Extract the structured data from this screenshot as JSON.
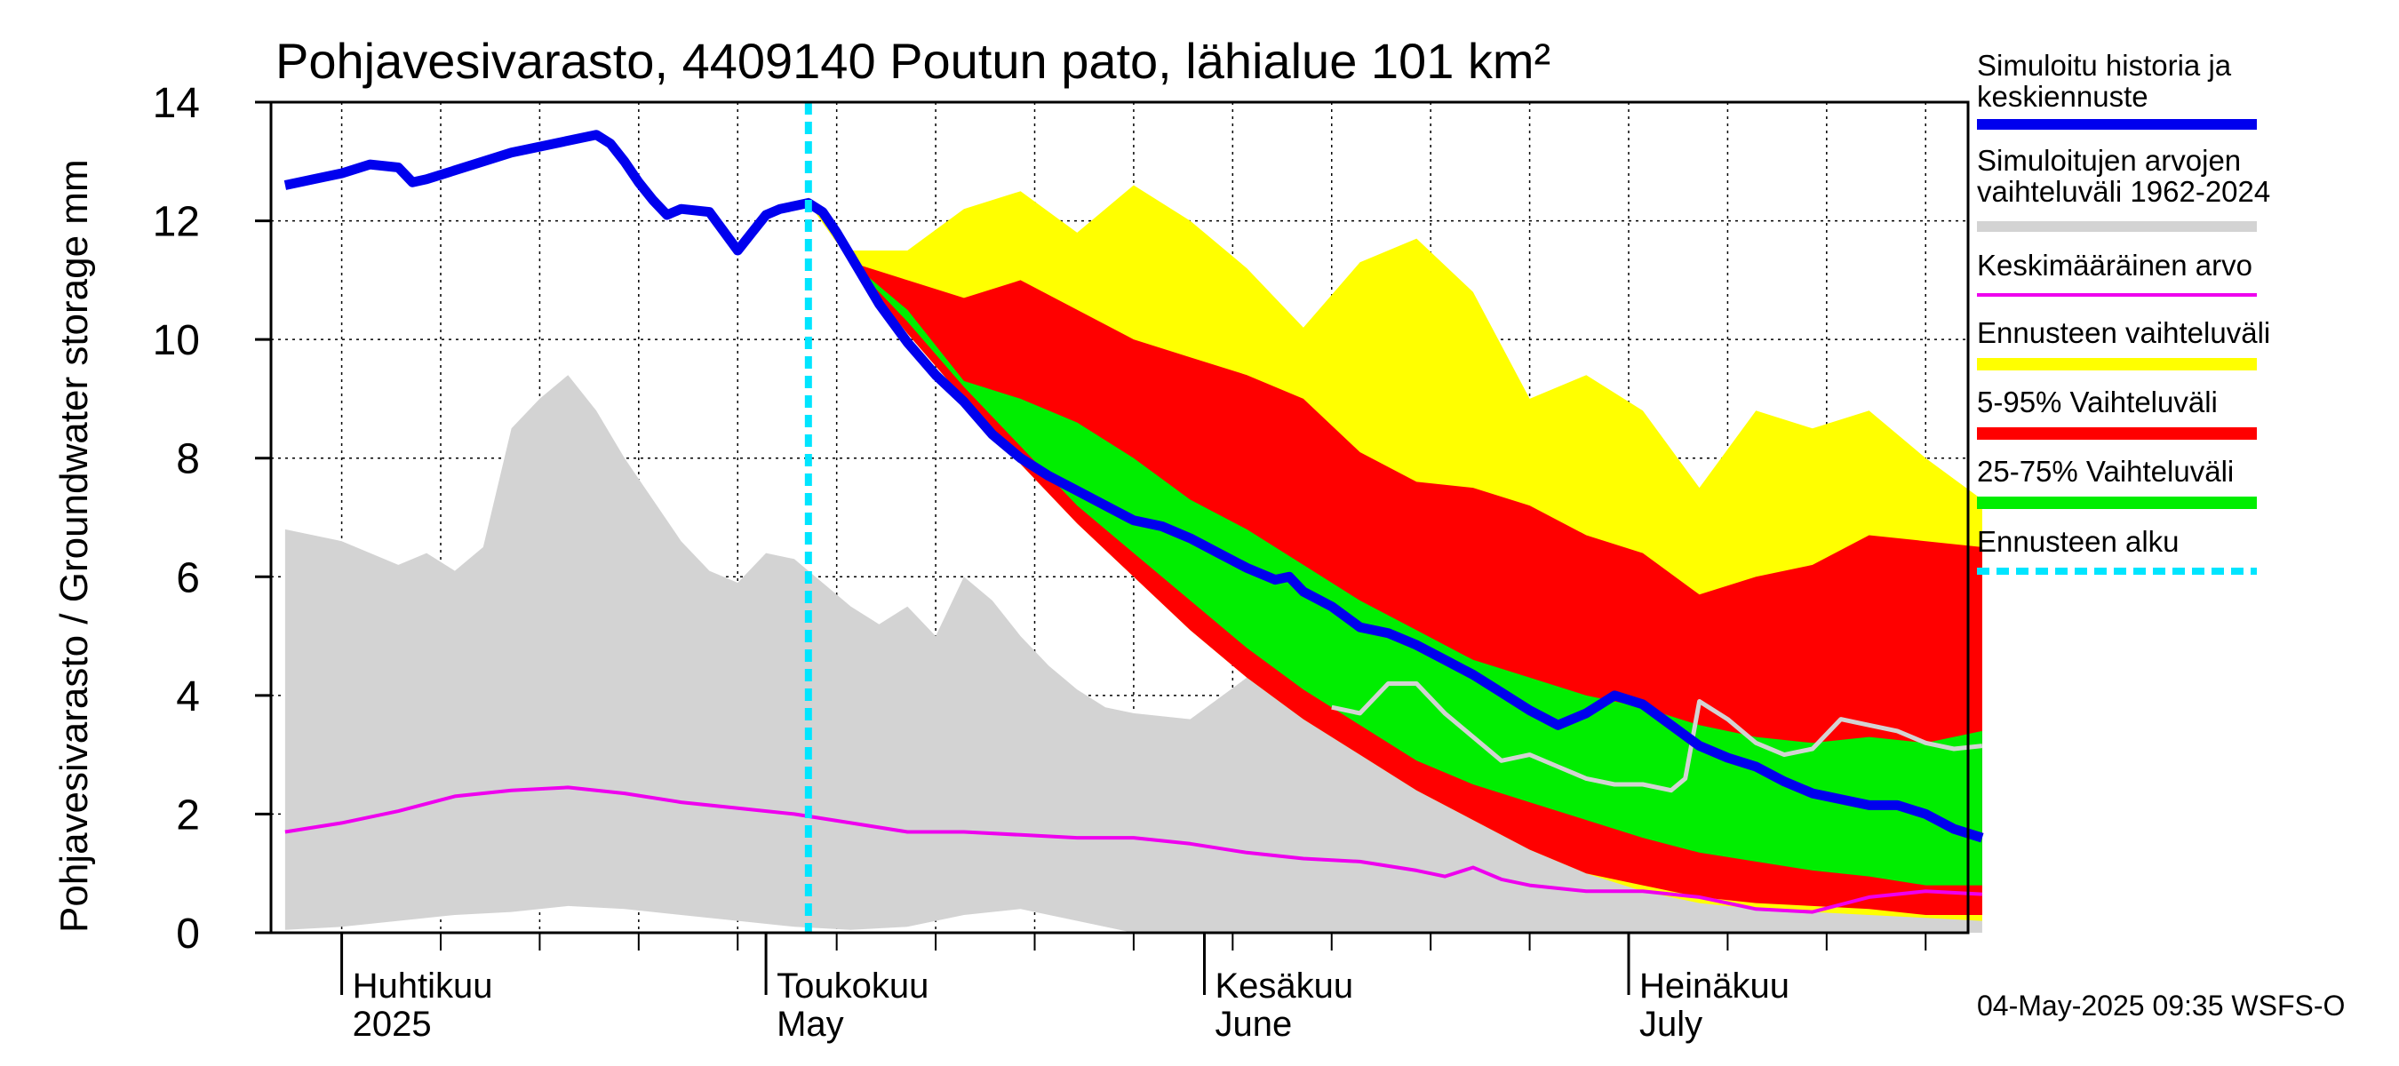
{
  "chart_data": {
    "type": "area",
    "title": "Pohjavesivarasto, 4409140 Poutun pato, lähialue 101 km²",
    "ylabel": "Pohjavesivarasto / Groundwater storage   mm",
    "ylim": [
      0,
      14
    ],
    "yticks": [
      "0",
      "2",
      "4",
      "6",
      "8",
      "10",
      "12",
      "14"
    ],
    "ytick_values": [
      0,
      2,
      4,
      6,
      8,
      10,
      12,
      14
    ],
    "xlim": [
      "2025-03-27",
      "2025-07-25"
    ],
    "month_labels": [
      {
        "fi": "Huhtikuu",
        "en": "2025",
        "date": "2025-04-01"
      },
      {
        "fi": "Toukokuu",
        "en": "May",
        "date": "2025-05-01"
      },
      {
        "fi": "Kesäkuu",
        "en": "June",
        "date": "2025-06-01"
      },
      {
        "fi": "Heinäkuu",
        "en": "July",
        "date": "2025-07-01"
      }
    ],
    "forecast_start": "2025-05-04",
    "legend": [
      {
        "label": "Simuloitu historia ja keskiennuste",
        "color": "#0000ee",
        "style": "thick"
      },
      {
        "label": "Simuloitujen arvojen vaihteluväli 1962-2024",
        "color": "#d3d3d3",
        "style": "line"
      },
      {
        "label": "Keskimääräinen arvo",
        "color": "#ee00ee",
        "style": "line"
      },
      {
        "label": "Ennusteen vaihteluväli",
        "color": "#ffff00",
        "style": "thick"
      },
      {
        "label": "5-95% Vaihteluväli",
        "color": "#ff0000",
        "style": "thick"
      },
      {
        "label": "25-75% Vaihteluväli",
        "color": "#00ee00",
        "style": "thick"
      },
      {
        "label": "Ennusteen alku",
        "color": "#00e5ff",
        "style": "dotted"
      }
    ],
    "series": [
      {
        "name": "Simulated history and mean forecast",
        "color": "#0000ee",
        "x": [
          -4,
          -2,
          0,
          2,
          4,
          5,
          6,
          8,
          10,
          12,
          14,
          16,
          18,
          19,
          20,
          21,
          22,
          23,
          24,
          26,
          28,
          29,
          30,
          31,
          32,
          33,
          34,
          35,
          36,
          38,
          40,
          42,
          44,
          46,
          48,
          50,
          52,
          54,
          56,
          58,
          60,
          62,
          64,
          66,
          67,
          68,
          70,
          72,
          74,
          76,
          78,
          80,
          82,
          84,
          86,
          88,
          90,
          92,
          94,
          96,
          98,
          100,
          102,
          104,
          106,
          108,
          110,
          112,
          114,
          116
        ],
        "y": [
          12.6,
          12.7,
          12.8,
          12.95,
          12.9,
          12.65,
          12.7,
          12.85,
          13.0,
          13.15,
          13.25,
          13.35,
          13.45,
          13.3,
          13.0,
          12.65,
          12.35,
          12.1,
          12.2,
          12.15,
          11.5,
          11.8,
          12.1,
          12.2,
          12.25,
          12.3,
          12.15,
          11.8,
          11.4,
          10.6,
          9.95,
          9.4,
          8.95,
          8.4,
          8.0,
          7.7,
          7.45,
          7.2,
          6.95,
          6.85,
          6.65,
          6.4,
          6.15,
          5.95,
          6.0,
          5.75,
          5.5,
          5.15,
          5.05,
          4.85,
          4.6,
          4.35,
          4.05,
          3.75,
          3.5,
          3.7,
          4.0,
          3.85,
          3.5,
          3.15,
          2.95,
          2.8,
          2.55,
          2.35,
          2.25,
          2.15,
          2.15,
          2.0,
          1.75,
          1.6
        ]
      },
      {
        "name": "Mean value",
        "color": "#ee00ee",
        "x": [
          -4,
          0,
          4,
          8,
          12,
          16,
          20,
          24,
          28,
          32,
          36,
          40,
          44,
          48,
          52,
          56,
          60,
          64,
          68,
          72,
          76,
          78,
          80,
          82,
          84,
          88,
          92,
          96,
          100,
          104,
          108,
          112,
          116
        ],
        "y": [
          1.7,
          1.85,
          2.05,
          2.3,
          2.4,
          2.45,
          2.35,
          2.2,
          2.1,
          2.0,
          1.85,
          1.7,
          1.7,
          1.65,
          1.6,
          1.6,
          1.5,
          1.35,
          1.25,
          1.2,
          1.05,
          0.95,
          1.1,
          0.9,
          0.8,
          0.7,
          0.7,
          0.6,
          0.4,
          0.35,
          0.6,
          0.7,
          0.65
        ]
      },
      {
        "name": "Historical range max",
        "color": "#d3d3d3",
        "x": [
          -4,
          0,
          4,
          6,
          8,
          10,
          12,
          14,
          16,
          18,
          20,
          22,
          24,
          26,
          28,
          30,
          32,
          34,
          36,
          38,
          40,
          42,
          44,
          46,
          48,
          50,
          52,
          54,
          56,
          60,
          64,
          68,
          72,
          76,
          80,
          84,
          88,
          92,
          96,
          100,
          104,
          108,
          112,
          116
        ],
        "y": [
          6.8,
          6.6,
          6.2,
          6.4,
          6.1,
          6.5,
          8.5,
          9.0,
          9.4,
          8.8,
          8.0,
          7.3,
          6.6,
          6.1,
          5.9,
          6.4,
          6.3,
          5.9,
          5.5,
          5.2,
          5.5,
          5.0,
          6.0,
          5.6,
          5.0,
          4.5,
          4.1,
          3.8,
          3.7,
          3.6,
          4.3,
          3.9,
          3.6,
          3.2,
          3.0,
          2.8,
          2.6,
          2.6,
          2.5,
          2.5,
          2.6,
          2.7,
          2.6,
          2.5
        ]
      },
      {
        "name": "Historical range min",
        "color": "#d3d3d3",
        "x": [
          -4,
          0,
          4,
          8,
          12,
          16,
          20,
          24,
          28,
          32,
          36,
          40,
          44,
          48,
          52,
          56,
          60,
          116
        ],
        "y": [
          0.05,
          0.1,
          0.2,
          0.3,
          0.35,
          0.45,
          0.4,
          0.3,
          0.2,
          0.1,
          0.05,
          0.1,
          0.3,
          0.4,
          0.2,
          0.0,
          0.0,
          0.0
        ]
      },
      {
        "name": "Forecast range max",
        "color": "#ffff00",
        "x": [
          33,
          36,
          40,
          44,
          48,
          52,
          56,
          60,
          64,
          68,
          72,
          76,
          80,
          84,
          88,
          92,
          96,
          100,
          104,
          108,
          112,
          116
        ],
        "y": [
          12.4,
          11.5,
          11.5,
          12.2,
          12.5,
          11.8,
          12.6,
          12.0,
          11.2,
          10.2,
          11.3,
          11.7,
          10.8,
          9.0,
          9.4,
          8.8,
          7.5,
          8.8,
          8.5,
          8.8,
          8.0,
          7.3
        ]
      },
      {
        "name": "Forecast range min",
        "color": "#ffff00",
        "x": [
          33,
          36,
          40,
          44,
          48,
          52,
          56,
          60,
          64,
          68,
          72,
          76,
          80,
          84,
          88,
          92,
          96,
          100,
          104,
          108,
          112,
          116
        ],
        "y": [
          12.3,
          11.3,
          10.1,
          9.0,
          7.9,
          6.9,
          6.0,
          5.1,
          4.3,
          3.6,
          3.0,
          2.4,
          1.9,
          1.4,
          1.0,
          0.7,
          0.5,
          0.4,
          0.35,
          0.3,
          0.25,
          0.2
        ]
      },
      {
        "name": "5-95% max",
        "color": "#ff0000",
        "x": [
          33,
          36,
          40,
          44,
          48,
          52,
          56,
          60,
          64,
          68,
          72,
          76,
          80,
          84,
          88,
          92,
          96,
          100,
          104,
          108,
          112,
          116
        ],
        "y": [
          12.3,
          11.3,
          11.0,
          10.7,
          11.0,
          10.5,
          10.0,
          9.7,
          9.4,
          9.0,
          8.1,
          7.6,
          7.5,
          7.2,
          6.7,
          6.4,
          5.7,
          6.0,
          6.2,
          6.7,
          6.6,
          6.5
        ]
      },
      {
        "name": "5-95% min",
        "color": "#ff0000",
        "x": [
          33,
          36,
          40,
          44,
          48,
          52,
          56,
          60,
          64,
          68,
          72,
          76,
          80,
          84,
          88,
          92,
          96,
          100,
          104,
          108,
          112,
          116
        ],
        "y": [
          12.3,
          11.3,
          10.1,
          9.0,
          7.9,
          6.9,
          6.0,
          5.1,
          4.3,
          3.6,
          3.0,
          2.4,
          1.9,
          1.4,
          1.0,
          0.8,
          0.6,
          0.5,
          0.45,
          0.4,
          0.3,
          0.3
        ]
      },
      {
        "name": "25-75% max",
        "color": "#00ee00",
        "x": [
          33,
          36,
          40,
          44,
          48,
          52,
          56,
          60,
          64,
          68,
          72,
          76,
          80,
          84,
          88,
          92,
          96,
          100,
          104,
          108,
          112,
          116
        ],
        "y": [
          12.3,
          11.3,
          10.5,
          9.3,
          9.0,
          8.6,
          8.0,
          7.3,
          6.8,
          6.2,
          5.6,
          5.1,
          4.6,
          4.3,
          4.0,
          3.8,
          3.5,
          3.3,
          3.2,
          3.3,
          3.2,
          3.4
        ]
      },
      {
        "name": "25-75% min",
        "color": "#00ee00",
        "x": [
          33,
          36,
          40,
          44,
          48,
          52,
          56,
          60,
          64,
          68,
          72,
          76,
          80,
          84,
          88,
          92,
          96,
          100,
          104,
          108,
          112,
          116
        ],
        "y": [
          12.3,
          11.3,
          10.3,
          9.2,
          8.2,
          7.2,
          6.4,
          5.6,
          4.8,
          4.1,
          3.5,
          2.9,
          2.5,
          2.2,
          1.9,
          1.6,
          1.35,
          1.2,
          1.05,
          0.95,
          0.8,
          0.8
        ]
      },
      {
        "name": "Historical single year",
        "color": "#d3d3d3",
        "x": [
          70,
          72,
          74,
          76,
          78,
          80,
          82,
          84,
          86,
          88,
          90,
          92,
          94,
          95,
          96,
          98,
          100,
          102,
          104,
          106,
          108,
          110,
          112,
          114,
          116
        ],
        "y": [
          3.8,
          3.7,
          4.2,
          4.2,
          3.7,
          3.3,
          2.9,
          3.0,
          2.8,
          2.6,
          2.5,
          2.5,
          2.4,
          2.6,
          3.9,
          3.6,
          3.2,
          3.0,
          3.1,
          3.6,
          3.5,
          3.4,
          3.2,
          3.1,
          3.15
        ]
      }
    ]
  },
  "footer": "04-May-2025 09:35 WSFS-O"
}
